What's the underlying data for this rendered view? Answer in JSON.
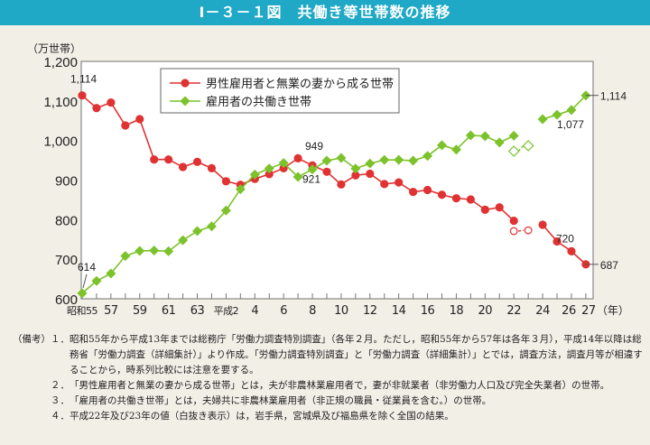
{
  "title": "Ⅰ－３－１図　共働き等世帯数の推移",
  "chart_data": {
    "type": "line",
    "title": "Ⅰ－３－１図　共働き等世帯数の推移",
    "ylabel": "（万世帯）",
    "xlabel": "（年）",
    "ylim": [
      600,
      1200
    ],
    "yticks": [
      600,
      700,
      800,
      900,
      1000,
      1100,
      1200
    ],
    "ytick_labels": [
      "600",
      "700",
      "800",
      "900",
      "1,000",
      "1,100",
      "1,200"
    ],
    "x": [
      1980,
      1981,
      1982,
      1983,
      1984,
      1985,
      1986,
      1987,
      1988,
      1989,
      1990,
      1991,
      1992,
      1993,
      1994,
      1995,
      1996,
      1997,
      1998,
      1999,
      2000,
      2001,
      2002,
      2003,
      2004,
      2005,
      2006,
      2007,
      2008,
      2009,
      2010,
      2011,
      2012,
      2013,
      2014,
      2015
    ],
    "xtick_labels": [
      {
        "x": 1980,
        "label": "昭和55"
      },
      {
        "x": 1982,
        "label": "57"
      },
      {
        "x": 1984,
        "label": "59"
      },
      {
        "x": 1986,
        "label": "61"
      },
      {
        "x": 1988,
        "label": "63"
      },
      {
        "x": 1990,
        "label": "平成2"
      },
      {
        "x": 1992,
        "label": "4"
      },
      {
        "x": 1994,
        "label": "6"
      },
      {
        "x": 1996,
        "label": "8"
      },
      {
        "x": 1998,
        "label": "10"
      },
      {
        "x": 2000,
        "label": "12"
      },
      {
        "x": 2002,
        "label": "14"
      },
      {
        "x": 2004,
        "label": "16"
      },
      {
        "x": 2006,
        "label": "18"
      },
      {
        "x": 2008,
        "label": "20"
      },
      {
        "x": 2010,
        "label": "22"
      },
      {
        "x": 2012,
        "label": "24"
      },
      {
        "x": 2014,
        "label": "26"
      },
      {
        "x": 2015,
        "label": "27"
      }
    ],
    "grid": false,
    "legend_placement": "top-center",
    "series": [
      {
        "name": "男性雇用者と無業の妻から成る世帯",
        "color": "#e03232",
        "marker": "circle",
        "values": [
          1114,
          1082,
          1096,
          1038,
          1054,
          952,
          952,
          933,
          946,
          930,
          897,
          888,
          903,
          915,
          930,
          955,
          937,
          921,
          889,
          912,
          916,
          890,
          894,
          870,
          875,
          863,
          854,
          851,
          825,
          831,
          797,
          null,
          787,
          745,
          720,
          687
        ],
        "hollow_points": [
          {
            "x": 2010,
            "y": 771
          },
          {
            "x": 2011,
            "y": 773
          }
        ]
      },
      {
        "name": "雇用者の共働き世帯",
        "color": "#7cc22a",
        "marker": "diamond",
        "values": [
          614,
          645,
          664,
          708,
          721,
          722,
          720,
          748,
          771,
          783,
          823,
          877,
          914,
          929,
          943,
          908,
          927,
          949,
          956,
          929,
          942,
          951,
          951,
          949,
          961,
          988,
          977,
          1013,
          1011,
          995,
          1012,
          null,
          1054,
          1065,
          1077,
          1114
        ],
        "hollow_points": [
          {
            "x": 2010,
            "y": 973
          },
          {
            "x": 2011,
            "y": 987
          }
        ]
      }
    ],
    "annotations": [
      {
        "series": 0,
        "x": 1980,
        "text": "1,114"
      },
      {
        "series": 1,
        "x": 1980,
        "text": "614"
      },
      {
        "series": 1,
        "x": 1997,
        "text": "949"
      },
      {
        "series": 0,
        "x": 1997,
        "text": "921"
      },
      {
        "series": 1,
        "x": 2014,
        "text": "1,077"
      },
      {
        "series": 0,
        "x": 2014,
        "text": "720"
      },
      {
        "series": 1,
        "x": 2015,
        "text": "1,114"
      },
      {
        "series": 0,
        "x": 2015,
        "text": "687"
      }
    ]
  },
  "notes": [
    {
      "lead": "（備考）１．",
      "text": "昭和55年から平成13年までは総務庁「労働力調査特別調査」（各年２月。ただし，昭和55年から57年は各年３月），平成14年以降は総務省「労働力調査（詳細集計）」より作成。「労働力調査特別調査」と「労働力調査（詳細集計）」とでは，調査方法，調査月等が相違することから，時系列比較には注意を要する。"
    },
    {
      "lead": "　　　　２．",
      "text": "「男性雇用者と無業の妻から成る世帯」とは，夫が非農林業雇用者で，妻が非就業者（非労働力人口及び完全失業者）の世帯。"
    },
    {
      "lead": "　　　　３．",
      "text": "「雇用者の共働き世帯」とは，夫婦共に非農林業雇用者（非正規の職員・従業員を含む。）の世帯。"
    },
    {
      "lead": "　　　　４．",
      "text": "平成22年及び23年の値（白抜き表示）は，岩手県，宮城県及び福島県を除く全国の結果。"
    }
  ]
}
